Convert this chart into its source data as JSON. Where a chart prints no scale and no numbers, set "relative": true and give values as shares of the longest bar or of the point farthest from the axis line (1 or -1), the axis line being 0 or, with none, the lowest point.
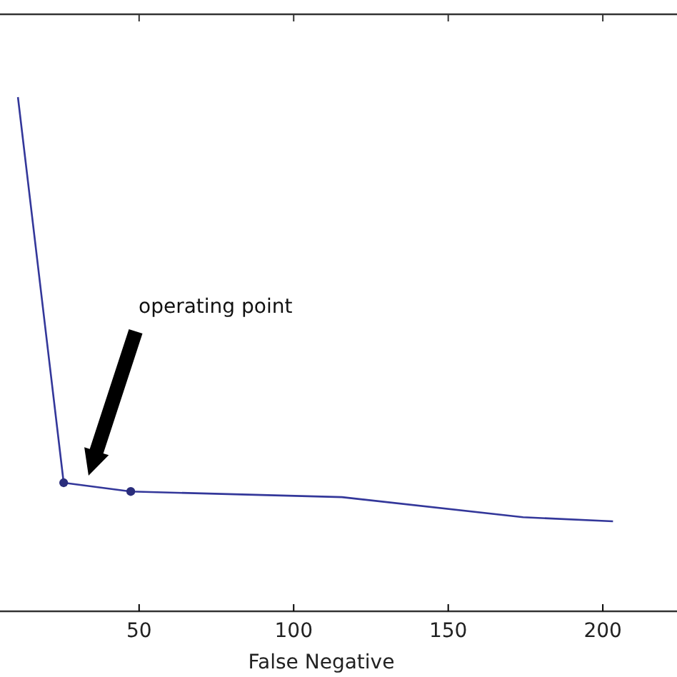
{
  "chart_data": {
    "type": "line",
    "xlabel": "False Negative",
    "relative": true,
    "xlim": [
      5,
      224
    ],
    "xticks": [
      50,
      100,
      150,
      200
    ],
    "marker": "none",
    "series": [
      {
        "type": "line",
        "color": "#33379a",
        "x": [
          10.8,
          25.6,
          47.3,
          115.6,
          174.2,
          203.3
        ],
        "values": [
          1,
          0.25,
          0.233,
          0.222,
          0.183,
          0.175
        ]
      },
      {
        "type": "scatter",
        "color": "#2a2d7c",
        "marker": "circle",
        "x": [
          25.6,
          47.3
        ],
        "values": [
          0.25,
          0.233
        ]
      }
    ],
    "annotations": [
      "operating point"
    ]
  }
}
